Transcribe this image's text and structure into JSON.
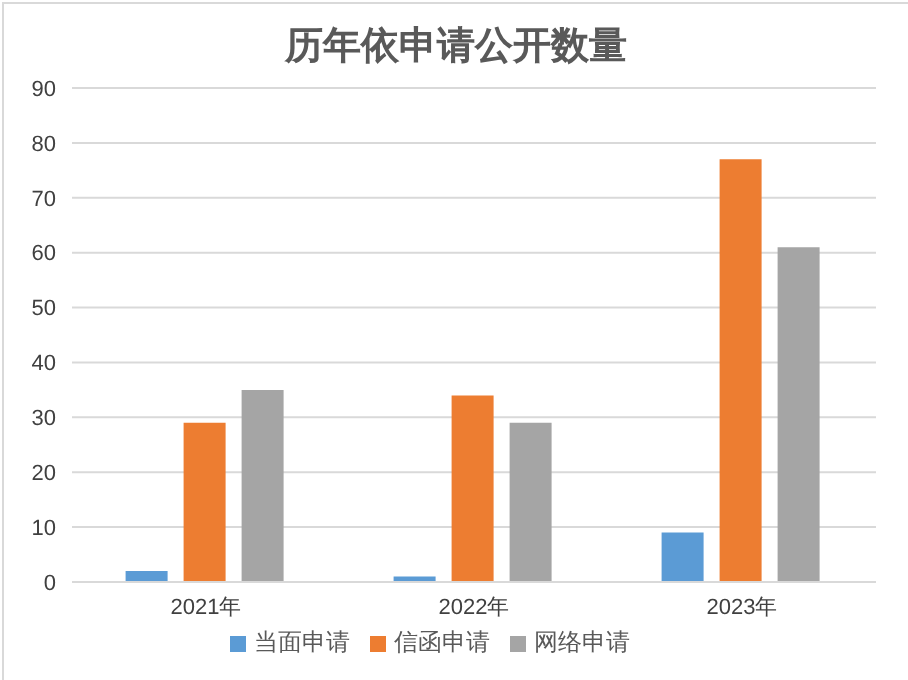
{
  "chart_data": {
    "type": "bar",
    "title": "历年依申请公开数量",
    "categories": [
      "2021年",
      "2022年",
      "2023年"
    ],
    "series": [
      {
        "name": "当面申请",
        "color": "#5b9bd5",
        "values": [
          2,
          1,
          9
        ]
      },
      {
        "name": "信函申请",
        "color": "#ed7d31",
        "values": [
          29,
          34,
          77
        ]
      },
      {
        "name": "网络申请",
        "color": "#a5a5a5",
        "values": [
          35,
          29,
          61
        ]
      }
    ],
    "ylim": [
      0,
      90
    ],
    "yticks": [
      0,
      10,
      20,
      30,
      40,
      50,
      60,
      70,
      80,
      90
    ],
    "grid": "y",
    "legend": "bottom"
  }
}
